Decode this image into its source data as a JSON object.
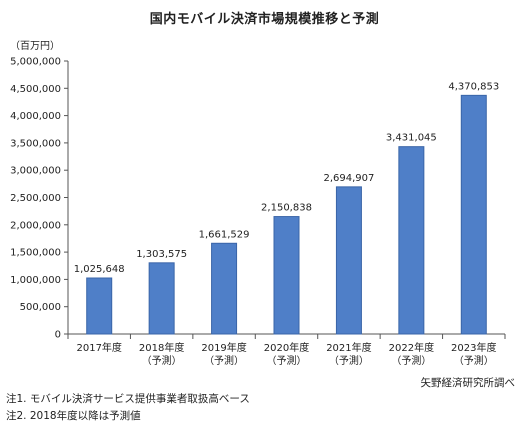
{
  "chart_data": {
    "type": "bar",
    "title": "国内モバイル決済市場規模推移と予測",
    "unit_label": "（百万円）",
    "categories": [
      "2017年度",
      "2018年度",
      "2019年度",
      "2020年度",
      "2021年度",
      "2022年度",
      "2023年度"
    ],
    "category_sublabels": [
      "",
      "（予測）",
      "（予測）",
      "（予測）",
      "（予測）",
      "（予測）",
      "（予測）"
    ],
    "values": [
      1025648,
      1303575,
      1661529,
      2150838,
      2694907,
      3431045,
      4370853
    ],
    "value_labels": [
      "1,025,648",
      "1,303,575",
      "1,661,529",
      "2,150,838",
      "2,694,907",
      "3,431,045",
      "4,370,853"
    ],
    "ylim": [
      0,
      5000000
    ],
    "yticks": [
      0,
      500000,
      1000000,
      1500000,
      2000000,
      2500000,
      3000000,
      3500000,
      4000000,
      4500000,
      5000000
    ],
    "ytick_labels": [
      "0",
      "500,000",
      "1,000,000",
      "1,500,000",
      "2,000,000",
      "2,500,000",
      "3,000,000",
      "3,500,000",
      "4,000,000",
      "4,500,000",
      "5,000,000"
    ],
    "grid": false,
    "bar_color": "#4f7fc8",
    "bar_edge_color": "#3a65a8"
  },
  "source": "矢野経済研究所調べ",
  "notes": [
    "注1. モバイル決済サービス提供事業者取扱高ベース",
    "注2. 2018年度以降は予測値"
  ]
}
